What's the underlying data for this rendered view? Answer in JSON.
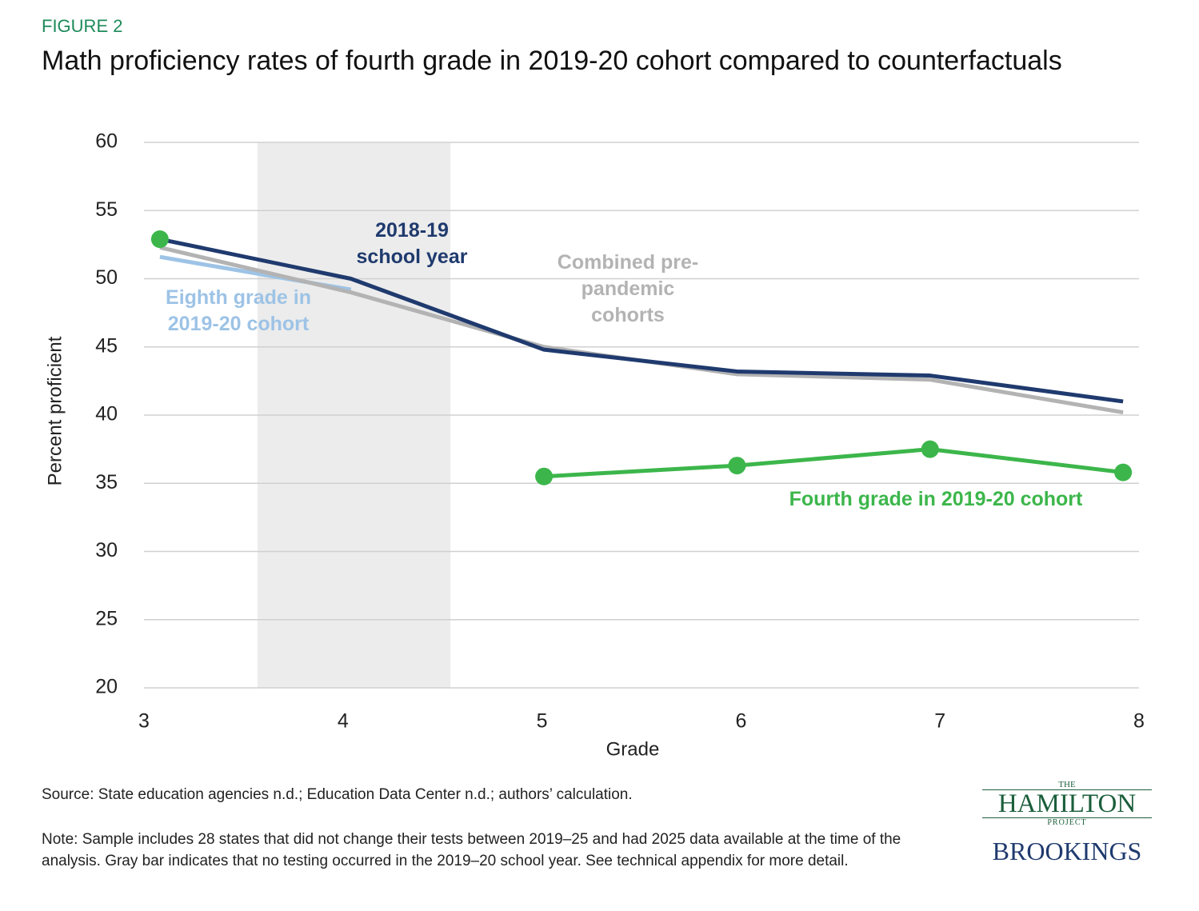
{
  "chart_data": {
    "type": "line",
    "figure_label": "FIGURE 2",
    "title": "Math proficiency rates of fourth grade in 2019-20 cohort compared to counterfactuals",
    "x_label": "Grade",
    "y_label": "Percent proficient",
    "x": [
      3.08,
      4.04,
      5.01,
      5.98,
      6.95,
      7.92
    ],
    "series": [
      {
        "name": "Eighth grade in 2019-20 cohort",
        "color": "#9dc3e6",
        "values": [
          51.6,
          49.2,
          null,
          null,
          null,
          null
        ]
      },
      {
        "name": "Combined pre-pandemic cohorts",
        "color": "#b3b3b3",
        "values": [
          52.3,
          49.0,
          45.0,
          43.0,
          42.6,
          40.2
        ]
      },
      {
        "name": "2018-19 school year",
        "color": "#1f3a6e",
        "values": [
          52.9,
          50.0,
          44.8,
          43.2,
          42.9,
          41.0
        ]
      },
      {
        "name": "Fourth grade in 2019-20 cohort",
        "color": "#3cb64b",
        "markers": true,
        "values": [
          52.9,
          null,
          35.5,
          36.3,
          37.5,
          35.8
        ]
      }
    ],
    "shaded_range": [
      3.57,
      4.54
    ],
    "shade_color": "#ececec",
    "xlim": [
      3,
      8
    ],
    "xticks": [
      3,
      4,
      5,
      6,
      7,
      8
    ],
    "ylim": [
      20,
      60
    ],
    "yticks": [
      20,
      25,
      30,
      35,
      40,
      45,
      50,
      55,
      60
    ],
    "grid": true,
    "source": "Source: State education agencies n.d.; Education Data Center n.d.; authors’ calculation.",
    "note": "Note: Sample includes 28 states that did not change their tests between 2019–25 and had 2025 data available at the time of the analysis. Gray bar indicates that no testing occurred in the 2019–20 school year. See technical appendix for more detail.",
    "logo": {
      "the": "THE",
      "hamilton": "HAMILTON",
      "project": "PROJECT",
      "brookings": "BROOKINGS"
    }
  }
}
